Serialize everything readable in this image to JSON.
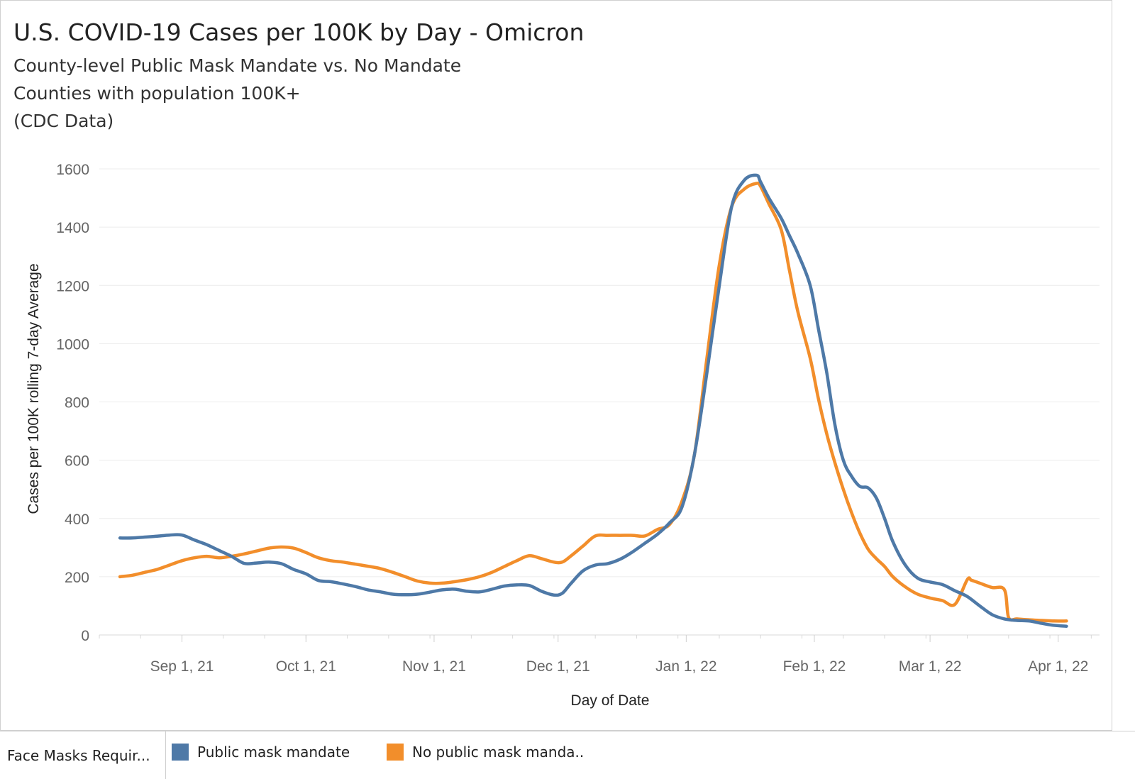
{
  "chart_data": {
    "type": "line",
    "title": "U.S. COVID-19 Cases per 100K by Day - Omicron",
    "subtitle_lines": [
      "County-level Public Mask Mandate vs. No Mandate",
      "Counties with population 100K+",
      "(CDC Data)"
    ],
    "xlabel": "Day of Date",
    "ylabel": "Cases per 100K rolling 7-day Average",
    "ylim": [
      0,
      1600
    ],
    "yticks": [
      0,
      200,
      400,
      600,
      800,
      1000,
      1200,
      1400,
      1600
    ],
    "xlim_days": [
      -20,
      222
    ],
    "x_ticks": [
      {
        "day": 0,
        "label": "Sep 1, 21"
      },
      {
        "day": 30,
        "label": "Oct 1, 21"
      },
      {
        "day": 61,
        "label": "Nov 1, 21"
      },
      {
        "day": 91,
        "label": "Dec 1, 21"
      },
      {
        "day": 122,
        "label": "Jan 1, 22"
      },
      {
        "day": 153,
        "label": "Feb 1, 22"
      },
      {
        "day": 181,
        "label": "Mar 1, 22"
      },
      {
        "day": 212,
        "label": "Apr 1, 22"
      }
    ],
    "x_note": "x values are days since Sep 1, 2021",
    "series": [
      {
        "name": "Public mask mandate",
        "color": "#4e79a7",
        "x": [
          -15,
          -12,
          -9,
          -6,
          -3,
          0,
          3,
          6,
          9,
          12,
          15,
          18,
          21,
          24,
          27,
          30,
          33,
          36,
          39,
          42,
          45,
          48,
          51,
          54,
          57,
          60,
          63,
          66,
          69,
          72,
          75,
          78,
          81,
          84,
          87,
          90,
          92,
          94,
          97,
          100,
          103,
          106,
          109,
          112,
          115,
          118,
          121,
          124,
          127,
          130,
          133,
          136,
          139,
          140,
          142,
          145,
          147,
          149,
          152,
          154,
          156,
          158,
          160,
          162,
          164,
          166,
          168,
          170,
          172,
          175,
          178,
          181,
          184,
          187,
          190,
          193,
          196,
          199,
          202,
          205,
          208,
          211,
          214
        ],
        "values": [
          333,
          333,
          336,
          339,
          343,
          343,
          326,
          310,
          290,
          270,
          246,
          247,
          250,
          245,
          225,
          210,
          187,
          183,
          175,
          166,
          155,
          148,
          140,
          138,
          140,
          147,
          155,
          157,
          150,
          148,
          157,
          168,
          172,
          170,
          150,
          137,
          143,
          175,
          220,
          240,
          245,
          260,
          285,
          315,
          345,
          385,
          440,
          620,
          900,
          1200,
          1470,
          1560,
          1578,
          1555,
          1500,
          1430,
          1370,
          1310,
          1200,
          1050,
          900,
          720,
          600,
          545,
          510,
          505,
          470,
          400,
          320,
          240,
          195,
          182,
          173,
          152,
          132,
          100,
          70,
          55,
          50,
          48,
          40,
          33,
          30
        ]
      },
      {
        "name": "No public mask manda..",
        "color": "#f28e2b",
        "x": [
          -15,
          -12,
          -9,
          -6,
          -3,
          0,
          3,
          6,
          9,
          12,
          15,
          18,
          21,
          24,
          27,
          30,
          33,
          36,
          39,
          42,
          45,
          48,
          51,
          54,
          57,
          60,
          63,
          66,
          69,
          72,
          75,
          78,
          81,
          84,
          87,
          90,
          92,
          94,
          97,
          100,
          103,
          106,
          109,
          112,
          115,
          118,
          121,
          124,
          127,
          130,
          133,
          136,
          139,
          140,
          142,
          145,
          147,
          149,
          152,
          154,
          156,
          158,
          160,
          162,
          164,
          166,
          168,
          170,
          172,
          175,
          178,
          181,
          184,
          187,
          190,
          191,
          193,
          196,
          199,
          200,
          202,
          205,
          208,
          211,
          214
        ],
        "values": [
          200,
          205,
          215,
          225,
          240,
          255,
          265,
          270,
          265,
          270,
          278,
          288,
          298,
          302,
          298,
          283,
          265,
          255,
          250,
          243,
          236,
          228,
          215,
          200,
          185,
          178,
          178,
          183,
          190,
          200,
          215,
          235,
          255,
          272,
          262,
          250,
          250,
          270,
          305,
          340,
          342,
          342,
          342,
          340,
          362,
          380,
          460,
          620,
          950,
          1270,
          1470,
          1530,
          1550,
          1540,
          1480,
          1390,
          1250,
          1110,
          950,
          810,
          690,
          590,
          500,
          420,
          350,
          295,
          262,
          235,
          200,
          165,
          140,
          127,
          118,
          105,
          190,
          188,
          178,
          163,
          155,
          60,
          55,
          52,
          50,
          48,
          48
        ]
      }
    ]
  },
  "legend": {
    "title": "Face Masks Requir...",
    "items": [
      {
        "label": "Public mask mandate",
        "color": "#4e79a7"
      },
      {
        "label": "No public mask manda..",
        "color": "#f28e2b"
      }
    ]
  }
}
